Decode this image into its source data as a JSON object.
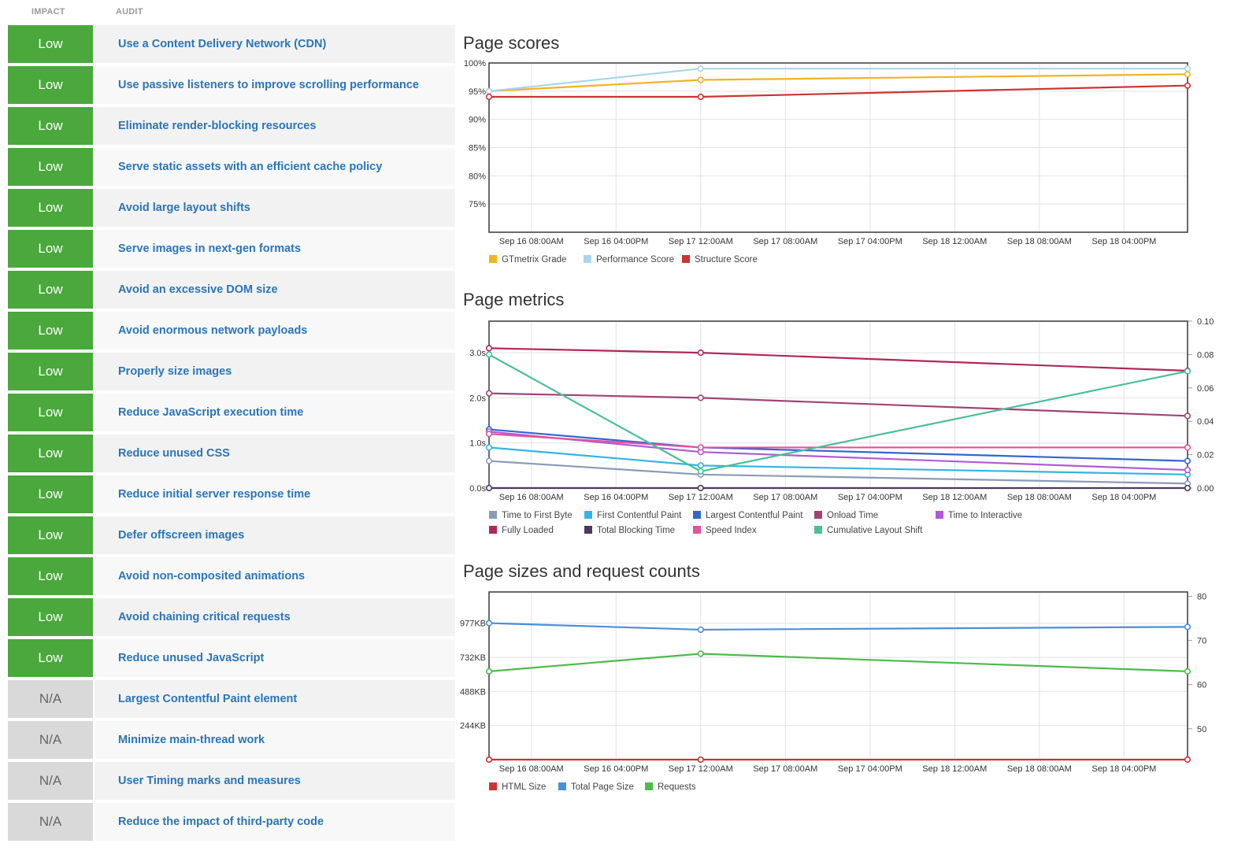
{
  "table": {
    "impact_header": "IMPACT",
    "audit_header": "AUDIT",
    "rows": [
      {
        "impact": "Low",
        "audit": "Use a Content Delivery Network (CDN)"
      },
      {
        "impact": "Low",
        "audit": "Use passive listeners to improve scrolling performance"
      },
      {
        "impact": "Low",
        "audit": "Eliminate render-blocking resources"
      },
      {
        "impact": "Low",
        "audit": "Serve static assets with an efficient cache policy"
      },
      {
        "impact": "Low",
        "audit": "Avoid large layout shifts"
      },
      {
        "impact": "Low",
        "audit": "Serve images in next-gen formats"
      },
      {
        "impact": "Low",
        "audit": "Avoid an excessive DOM size"
      },
      {
        "impact": "Low",
        "audit": "Avoid enormous network payloads"
      },
      {
        "impact": "Low",
        "audit": "Properly size images"
      },
      {
        "impact": "Low",
        "audit": "Reduce JavaScript execution time"
      },
      {
        "impact": "Low",
        "audit": "Reduce unused CSS"
      },
      {
        "impact": "Low",
        "audit": "Reduce initial server response time"
      },
      {
        "impact": "Low",
        "audit": "Defer offscreen images"
      },
      {
        "impact": "Low",
        "audit": "Avoid non-composited animations"
      },
      {
        "impact": "Low",
        "audit": "Avoid chaining critical requests"
      },
      {
        "impact": "Low",
        "audit": "Reduce unused JavaScript"
      },
      {
        "impact": "N/A",
        "audit": "Largest Contentful Paint element"
      },
      {
        "impact": "N/A",
        "audit": "Minimize main-thread work"
      },
      {
        "impact": "N/A",
        "audit": "User Timing marks and measures"
      },
      {
        "impact": "N/A",
        "audit": "Reduce the impact of third-party code"
      }
    ]
  },
  "colors": {
    "impact_low": "#4aa83c",
    "impact_na": "#d9d9d9",
    "link": "#2a75b7",
    "grid": "#e2e2e2",
    "frame": "#444444"
  },
  "chart_data": [
    {
      "type": "line",
      "title": "Page scores",
      "x_ticks": [
        "Sep 16 08:00AM",
        "Sep 16 04:00PM",
        "Sep 17 12:00AM",
        "Sep 17 08:00AM",
        "Sep 17 04:00PM",
        "Sep 18 12:00AM",
        "Sep 18 08:00AM",
        "Sep 18 04:00PM"
      ],
      "x_range": [
        "Sep 16 04:00AM",
        "Sep 18 10:00PM"
      ],
      "x": [
        "Sep 16 04:00AM",
        "Sep 17 12:00AM",
        "Sep 18 10:00PM"
      ],
      "ylim": [
        70,
        100
      ],
      "y_ticks": [
        "100%",
        "95%",
        "90%",
        "85%",
        "80%",
        "75%"
      ],
      "y_tick_values": [
        100,
        95,
        90,
        85,
        80,
        75
      ],
      "series": [
        {
          "name": "GTmetrix Grade",
          "color": "#f0b323",
          "values": [
            95,
            97,
            98
          ]
        },
        {
          "name": "Performance Score",
          "color": "#a9d4ec",
          "values": [
            95,
            99,
            99
          ]
        },
        {
          "name": "Structure Score",
          "color": "#cc3333",
          "values": [
            94,
            94,
            96
          ]
        }
      ],
      "legend": "bottom-left",
      "grid": true
    },
    {
      "type": "line",
      "title": "Page metrics",
      "x_ticks": [
        "Sep 16 08:00AM",
        "Sep 16 04:00PM",
        "Sep 17 12:00AM",
        "Sep 17 08:00AM",
        "Sep 17 04:00PM",
        "Sep 18 12:00AM",
        "Sep 18 08:00AM",
        "Sep 18 04:00PM"
      ],
      "x_range": [
        "Sep 16 04:00AM",
        "Sep 18 10:00PM"
      ],
      "x": [
        "Sep 16 04:00AM",
        "Sep 17 12:00AM",
        "Sep 18 10:00PM"
      ],
      "ylim": [
        0,
        3.7
      ],
      "y_ticks": [
        "3.0s",
        "2.0s",
        "1.0s",
        "0.0s"
      ],
      "y_tick_values": [
        3,
        2,
        1,
        0
      ],
      "y2lim": [
        0,
        0.1
      ],
      "y2_ticks": [
        "0.10",
        "0.08",
        "0.06",
        "0.04",
        "0.02",
        "0.00"
      ],
      "y2_tick_values": [
        0.1,
        0.08,
        0.06,
        0.04,
        0.02,
        0
      ],
      "series": [
        {
          "name": "Time to First Byte",
          "color": "#8a9bb8",
          "axis": "left",
          "values": [
            0.6,
            0.3,
            0.1
          ]
        },
        {
          "name": "First Contentful Paint",
          "color": "#33b5e5",
          "axis": "left",
          "values": [
            0.9,
            0.5,
            0.3
          ]
        },
        {
          "name": "Largest Contentful Paint",
          "color": "#3366cc",
          "axis": "left",
          "values": [
            1.3,
            0.9,
            0.6
          ]
        },
        {
          "name": "Onload Time",
          "color": "#9e4477",
          "axis": "left",
          "values": [
            2.1,
            2.0,
            1.6
          ]
        },
        {
          "name": "Time to Interactive",
          "color": "#b05ad6",
          "axis": "left",
          "values": [
            1.25,
            0.8,
            0.4
          ]
        },
        {
          "name": "Fully Loaded",
          "color": "#b0285a",
          "axis": "left",
          "values": [
            3.1,
            3.0,
            2.6
          ]
        },
        {
          "name": "Total Blocking Time",
          "color": "#4b3a5e",
          "axis": "left",
          "values": [
            0,
            0,
            0
          ]
        },
        {
          "name": "Speed Index",
          "color": "#e6529b",
          "axis": "left",
          "values": [
            1.2,
            0.9,
            0.9
          ]
        },
        {
          "name": "Cumulative Layout Shift",
          "color": "#4cbf95",
          "axis": "right",
          "values": [
            0.08,
            0.01,
            0.07
          ]
        }
      ],
      "legend": "bottom-left",
      "grid": true
    },
    {
      "type": "line",
      "title": "Page sizes and request counts",
      "x_ticks": [
        "Sep 16 08:00AM",
        "Sep 16 04:00PM",
        "Sep 17 12:00AM",
        "Sep 17 08:00AM",
        "Sep 17 04:00PM",
        "Sep 18 12:00AM",
        "Sep 18 08:00AM",
        "Sep 18 04:00PM"
      ],
      "x_range": [
        "Sep 16 04:00AM",
        "Sep 18 10:00PM"
      ],
      "x": [
        "Sep 16 04:00AM",
        "Sep 17 12:00AM",
        "Sep 18 10:00PM"
      ],
      "ylim": [
        0,
        1200
      ],
      "y_ticks": [
        "977KB",
        "732KB",
        "488KB",
        "244KB"
      ],
      "y_tick_values": [
        977,
        732,
        488,
        244
      ],
      "y2lim": [
        43,
        81
      ],
      "y2_ticks": [
        "80",
        "70",
        "60",
        "50"
      ],
      "y2_tick_values": [
        80,
        70,
        60,
        50
      ],
      "series": [
        {
          "name": "HTML Size",
          "color": "#cc3333",
          "axis": "left",
          "values": [
            0,
            0,
            0
          ]
        },
        {
          "name": "Total Page Size",
          "color": "#4a90d9",
          "axis": "left",
          "values": [
            977,
            930,
            950
          ]
        },
        {
          "name": "Requests",
          "color": "#4cbb4c",
          "axis": "right",
          "values": [
            63,
            67,
            63
          ]
        }
      ],
      "legend": "bottom-left",
      "grid": true
    }
  ]
}
